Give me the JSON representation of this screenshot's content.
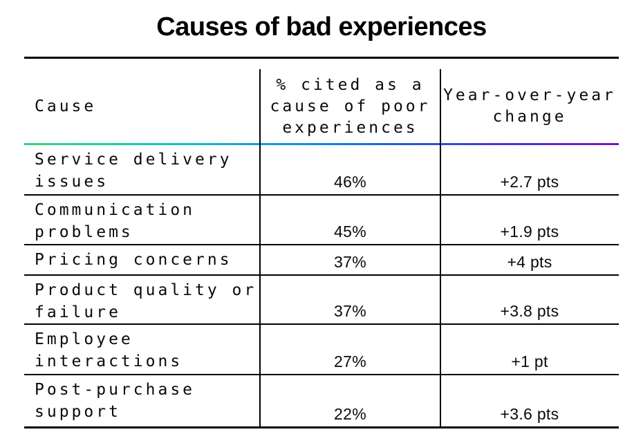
{
  "title": "Causes of bad experiences",
  "colors": {
    "background": "#ffffff",
    "line": "#000000",
    "text": "#0a0a0a",
    "header_gradient": [
      "#2bd878",
      "#14c6be",
      "#0a87e8",
      "#4733e3",
      "#7e10d6"
    ]
  },
  "table": {
    "headers": {
      "cause": "Cause",
      "pct": "% cited as a\ncause of poor\nexperiences",
      "yoy": "Year-over-year\nchange"
    },
    "rows": [
      {
        "cause": "Service delivery issues",
        "pct": "46%",
        "yoy": "+2.7 pts"
      },
      {
        "cause": "Communication problems",
        "pct": "45%",
        "yoy": "+1.9 pts"
      },
      {
        "cause": "Pricing concerns",
        "pct": "37%",
        "yoy": "+4 pts"
      },
      {
        "cause": "Product quality or failure",
        "pct": "37%",
        "yoy": "+3.8 pts"
      },
      {
        "cause": "Employee interactions",
        "pct": "27%",
        "yoy": "+1 pt"
      },
      {
        "cause": "Post-purchase support",
        "pct": "22%",
        "yoy": "+3.6 pts"
      }
    ]
  },
  "chart_data": {
    "type": "table",
    "title": "Causes of bad experiences",
    "columns": [
      "Cause",
      "% cited as a cause of poor experiences",
      "Year-over-year change"
    ],
    "categories": [
      "Service delivery issues",
      "Communication problems",
      "Pricing concerns",
      "Product quality or failure",
      "Employee interactions",
      "Post-purchase support"
    ],
    "series": [
      {
        "name": "% cited as a cause of poor experiences",
        "unit": "%",
        "values": [
          46,
          45,
          37,
          37,
          27,
          22
        ]
      },
      {
        "name": "Year-over-year change",
        "unit": "pts",
        "values": [
          2.7,
          1.9,
          4,
          3.8,
          1,
          3.6
        ],
        "labels": [
          "+2.7 pts",
          "+1.9 pts",
          "+4 pts",
          "+3.8 pts",
          "+1 pt",
          "+3.6 pts"
        ]
      }
    ],
    "legend": false,
    "grid": "table-rules"
  }
}
